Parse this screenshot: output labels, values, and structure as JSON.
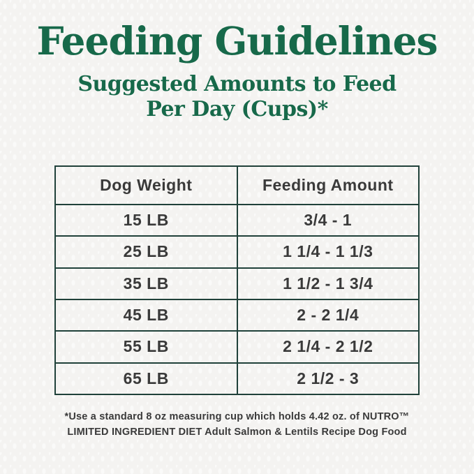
{
  "page": {
    "title": "Feeding Guidelines",
    "subtitle_line1": "Suggested Amounts to Feed",
    "subtitle_line2": "Per Day (Cups)*"
  },
  "table": {
    "headers": [
      "Dog Weight",
      "Feeding Amount"
    ],
    "rows": [
      {
        "weight": "15 LB",
        "amount": "3/4 - 1"
      },
      {
        "weight": "25 LB",
        "amount": "1 1/4 - 1 1/3"
      },
      {
        "weight": "35 LB",
        "amount": "1 1/2 - 1 3/4"
      },
      {
        "weight": "45 LB",
        "amount": "2 - 2 1/4"
      },
      {
        "weight": "55 LB",
        "amount": "2 1/4 - 2 1/2"
      },
      {
        "weight": "65 LB",
        "amount": "2 1/2 - 3"
      }
    ]
  },
  "footnote": {
    "line1": "*Use a standard 8 oz measuring cup which holds 4.42 oz. of NUTRO™",
    "line2": "LIMITED INGREDIENT DIET Adult Salmon & Lentils Recipe Dog Food"
  },
  "colors": {
    "brand_green": "#17694a",
    "table_border": "#20413a",
    "table_text": "#3a3a3a",
    "background": "#f4f3f1"
  }
}
